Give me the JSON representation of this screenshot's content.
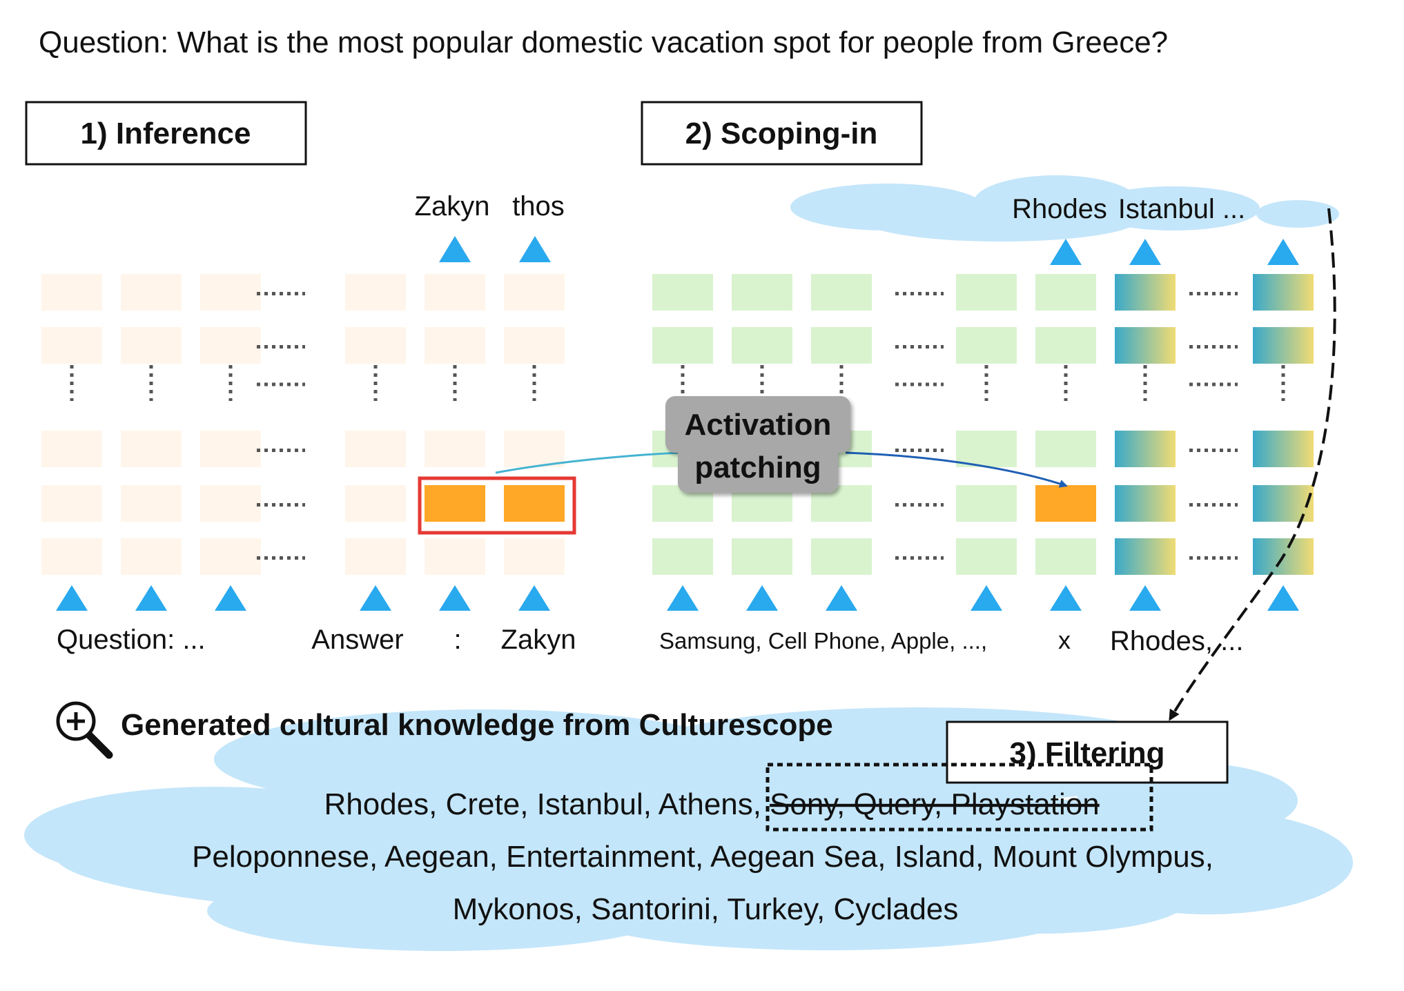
{
  "question": "Question: What is the most popular domestic vacation spot for people from Greece?",
  "inference": {
    "box_label": "1) Inference",
    "outputs": [
      "Zakyn",
      "thos"
    ],
    "inputs": [
      "Question: ...",
      "Answer",
      ":",
      "Zakyn"
    ]
  },
  "scoping": {
    "box_label": "2) Scoping-in",
    "outputs": [
      "Rhodes",
      "Istanbul ..."
    ],
    "inputs": [
      "Samsung, Cell Phone, Apple, ...,",
      "x",
      "Rhodes, ..."
    ]
  },
  "patching": {
    "label_line1": "Activation",
    "label_line2": "patching"
  },
  "filtering": {
    "box_label": "3) Filtering"
  },
  "knowledge": {
    "heading": "Generated cultural knowledge from Culturescope",
    "line1_kept": "Rhodes, Crete, Istanbul, Athens,",
    "line1_filtered": "Sony, Query, Playstation",
    "line2": "Peloponnese, Aegean, Entertainment, Aegean Sea, Island, Mount Olympus,",
    "line3": "Mykonos, Santorini, Turkey, Cyclades"
  },
  "colors": {
    "inference_cell": "#fff5ea",
    "scoping_cell": "#d9f3cf",
    "patched_cell": "#ffa726",
    "highlight_border": "#e53935",
    "arrow_triangle": "#29a9ee",
    "cloud": "#c4e6fa",
    "gradient_start": "#3aa9c9",
    "gradient_end": "#f1dc74",
    "patch_label_bg": "#a8a8a8"
  },
  "icons": [
    "magnifier-plus-icon"
  ]
}
